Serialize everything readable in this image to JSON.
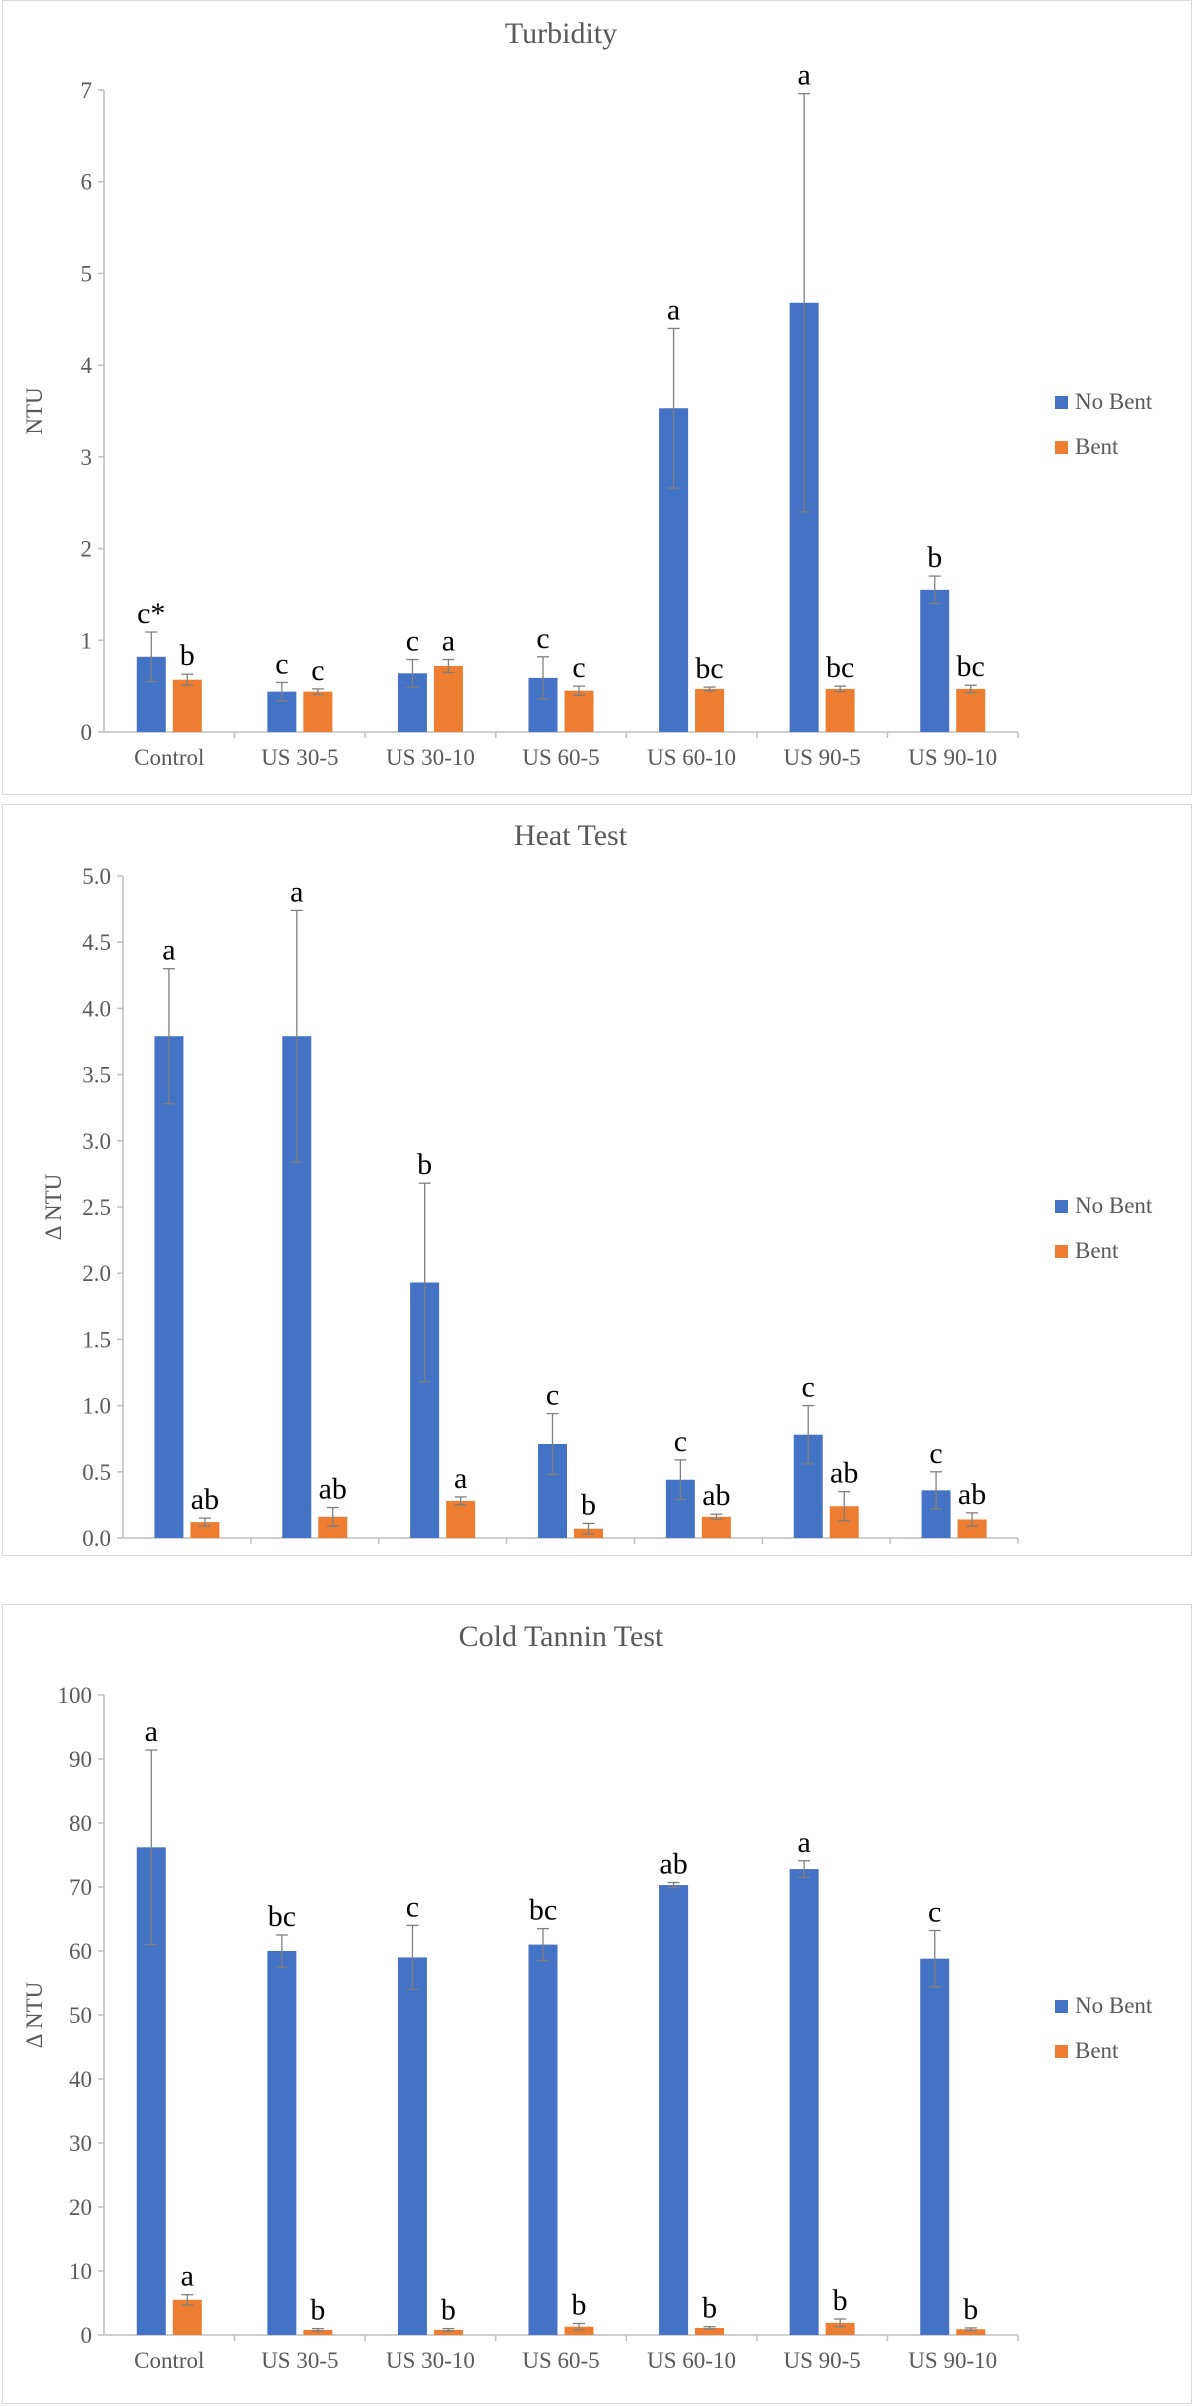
{
  "colors": {
    "no_bent": "#4472C4",
    "bent": "#ED7D31",
    "axis": "#bfbfbf",
    "text": "#595959"
  },
  "chart_data": [
    {
      "type": "bar",
      "title": "Turbidity",
      "ylabel": "NTU",
      "xlabel": "",
      "ylim": [
        0,
        7
      ],
      "yticks": [
        "0",
        "1",
        "2",
        "3",
        "4",
        "5",
        "6",
        "7"
      ],
      "categories": [
        "Control",
        "US 30-5",
        "US 30-10",
        "US 60-5",
        "US 60-10",
        "US 90-5",
        "US 90-10"
      ],
      "legend_position": "right",
      "grid": false,
      "series": [
        {
          "name": "No Bent",
          "values": [
            0.82,
            0.44,
            0.64,
            0.59,
            3.53,
            4.68,
            1.55
          ],
          "errors": [
            0.27,
            0.1,
            0.15,
            0.23,
            0.87,
            2.28,
            0.15
          ],
          "labels": [
            "c*",
            "c",
            "c",
            "c",
            "a",
            "a",
            "b"
          ]
        },
        {
          "name": "Bent",
          "values": [
            0.57,
            0.44,
            0.72,
            0.45,
            0.47,
            0.47,
            0.47
          ],
          "errors": [
            0.06,
            0.03,
            0.07,
            0.05,
            0.02,
            0.03,
            0.04
          ],
          "labels": [
            "b",
            "c",
            "a",
            "c",
            "bc",
            "bc",
            "bc"
          ]
        }
      ]
    },
    {
      "type": "bar",
      "title": "Heat Test",
      "ylabel": "Δ NTU",
      "xlabel": "",
      "ylim": [
        0,
        5
      ],
      "yticks": [
        "0.0",
        "0.5",
        "1.0",
        "1.5",
        "2.0",
        "2.5",
        "3.0",
        "3.5",
        "4.0",
        "4.5",
        "5.0"
      ],
      "categories": [
        "Control",
        "US 30-5",
        "US 30-10",
        "US 60-5",
        "US 60-10",
        "US 90-5",
        "US 90-10"
      ],
      "legend_position": "right",
      "grid": false,
      "series": [
        {
          "name": "No Bent",
          "values": [
            3.79,
            3.79,
            1.93,
            0.71,
            0.44,
            0.78,
            0.36
          ],
          "errors": [
            0.51,
            0.95,
            0.75,
            0.23,
            0.15,
            0.22,
            0.14
          ],
          "labels": [
            "a",
            "a",
            "b",
            "c",
            "c",
            "c",
            "c"
          ]
        },
        {
          "name": "Bent",
          "values": [
            0.12,
            0.16,
            0.28,
            0.07,
            0.16,
            0.24,
            0.14
          ],
          "errors": [
            0.03,
            0.07,
            0.03,
            0.04,
            0.02,
            0.11,
            0.05
          ],
          "labels": [
            "ab",
            "ab",
            "a",
            "b",
            "ab",
            "ab",
            "ab"
          ]
        }
      ]
    },
    {
      "type": "bar",
      "title": "Cold Tannin Test",
      "ylabel": "Δ NTU",
      "xlabel": "",
      "ylim": [
        0,
        100
      ],
      "yticks": [
        "0",
        "10",
        "20",
        "30",
        "40",
        "50",
        "60",
        "70",
        "80",
        "90",
        "100"
      ],
      "categories": [
        "Control",
        "US 30-5",
        "US 30-10",
        "US 60-5",
        "US 60-10",
        "US 90-5",
        "US 90-10"
      ],
      "legend_position": "right",
      "grid": false,
      "series": [
        {
          "name": "No Bent",
          "values": [
            76.2,
            60,
            59,
            61,
            70.3,
            72.8,
            58.8
          ],
          "errors": [
            15.2,
            2.5,
            5,
            2.5,
            0.4,
            1.3,
            4.4
          ],
          "labels": [
            "a",
            "bc",
            "c",
            "bc",
            "ab",
            "a",
            "c"
          ]
        },
        {
          "name": "Bent",
          "values": [
            5.5,
            0.8,
            0.8,
            1.3,
            1.1,
            1.9,
            0.9
          ],
          "errors": [
            0.8,
            0.2,
            0.2,
            0.5,
            0.2,
            0.6,
            0.2
          ],
          "labels": [
            "a",
            "b",
            "b",
            "b",
            "b",
            "b",
            "b"
          ]
        }
      ]
    }
  ]
}
